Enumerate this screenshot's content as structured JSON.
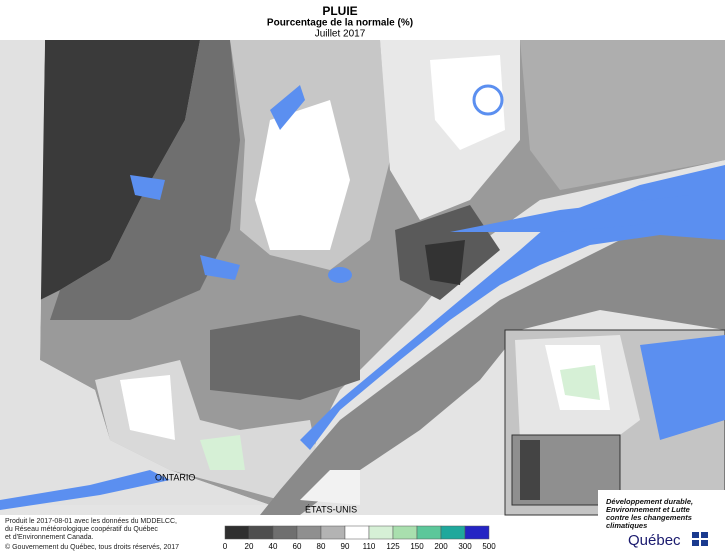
{
  "header": {
    "title": "PLUIE",
    "subtitle": "Pourcentage de la normale (%)",
    "period": "Juillet 2017"
  },
  "map_labels": [
    "ONTARIO",
    "ÉTATS-UNIS"
  ],
  "legend": {
    "ticks": [
      0,
      20,
      40,
      60,
      80,
      90,
      110,
      125,
      150,
      200,
      300,
      500
    ],
    "colors": [
      "#2f2f2f",
      "#4e4e4e",
      "#6f6f6f",
      "#8f8f8f",
      "#b3b3b3",
      "#ffffff",
      "#d6f0d6",
      "#a9dfae",
      "#5cc79a",
      "#1fa89c",
      "#2424c4"
    ]
  },
  "credits": [
    "Produit le 2017-08-01 avec les données du MDDELCC,",
    "du Réseau météorologique coopératif du Québec",
    "et d'Environnement Canada.",
    "© Gouvernement du Québec, tous droits réservés, 2017"
  ],
  "logo": {
    "lines": [
      "Développement durable,",
      "Environnement et Lutte",
      "contre les changements",
      "climatiques"
    ],
    "name": "Québec"
  }
}
